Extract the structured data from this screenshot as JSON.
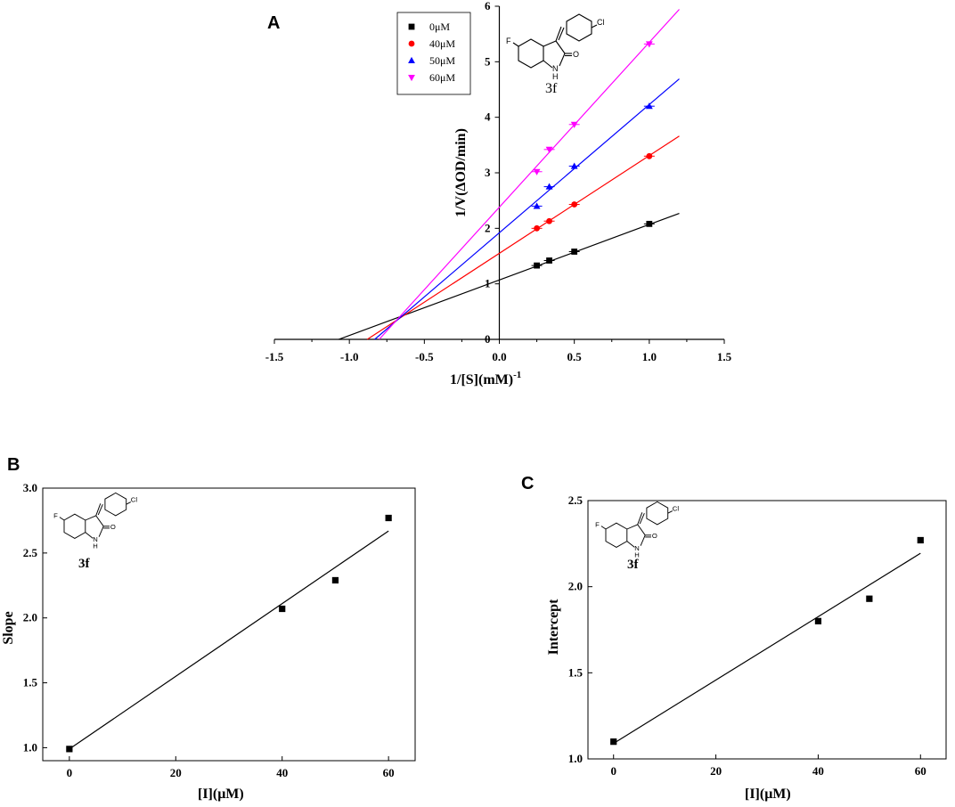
{
  "chart_data": [
    {
      "type": "scatter",
      "panel": "A",
      "xlabel": "1/[S](mM)",
      "xlabel_superscript": "-1",
      "ylabel": "1/V(ΔOD/min)",
      "xlim": [
        -1.5,
        1.5
      ],
      "ylim": [
        0,
        6
      ],
      "xticks": [
        "-1.5",
        "-1.0",
        "-0.5",
        "0.0",
        "0.5",
        "1.0",
        "1.5"
      ],
      "xtick_values": [
        -1.5,
        -1.0,
        -0.5,
        0.0,
        0.5,
        1.0,
        1.5
      ],
      "yticks": [
        "0",
        "1",
        "2",
        "3",
        "4",
        "5",
        "6"
      ],
      "ytick_values": [
        0,
        1,
        2,
        3,
        4,
        5,
        6
      ],
      "compound": "3f",
      "fit_x_range": [
        -1.1,
        1.2
      ],
      "legend_position": "top-left",
      "series": [
        {
          "name": "0μM",
          "marker": "square",
          "color": "#000000",
          "x": [
            0.25,
            0.333,
            0.5,
            1.0
          ],
          "y": [
            1.33,
            1.42,
            1.58,
            2.08
          ],
          "intercept": 1.07,
          "slope": 1.0
        },
        {
          "name": "40μM",
          "marker": "circle",
          "color": "#ff0000",
          "x": [
            0.25,
            0.333,
            0.5,
            1.0
          ],
          "y": [
            2.0,
            2.13,
            2.43,
            3.3
          ],
          "intercept": 1.55,
          "slope": 1.76
        },
        {
          "name": "50μM",
          "marker": "triangle-up",
          "color": "#0000ff",
          "x": [
            0.25,
            0.333,
            0.5,
            1.0
          ],
          "y": [
            2.4,
            2.75,
            3.12,
            4.2
          ],
          "intercept": 1.92,
          "slope": 2.31
        },
        {
          "name": "60μM",
          "marker": "triangle-down",
          "color": "#ff00ff",
          "x": [
            0.25,
            0.333,
            0.5,
            1.0
          ],
          "y": [
            3.02,
            3.42,
            3.87,
            5.32
          ],
          "intercept": 2.38,
          "slope": 2.97
        }
      ]
    },
    {
      "type": "scatter",
      "panel": "B",
      "xlabel": "[I](μM)",
      "ylabel": "Slope",
      "xlim": [
        -5,
        65
      ],
      "ylim": [
        0.9,
        3.0
      ],
      "xticks": [
        "0",
        "20",
        "40",
        "60"
      ],
      "xtick_values": [
        0,
        20,
        40,
        60
      ],
      "yticks": [
        "1.0",
        "1.5",
        "2.0",
        "2.5",
        "3.0"
      ],
      "ytick_values": [
        1.0,
        1.5,
        2.0,
        2.5,
        3.0
      ],
      "compound": "3f",
      "x": [
        0,
        40,
        50,
        60
      ],
      "y": [
        0.99,
        2.07,
        2.29,
        2.77
      ],
      "fit": {
        "intercept": 0.99,
        "slope": 0.028
      }
    },
    {
      "type": "scatter",
      "panel": "C",
      "xlabel": "[I](μM)",
      "ylabel": "Intercept",
      "xlim": [
        -5,
        65
      ],
      "ylim": [
        1.0,
        2.5
      ],
      "xticks": [
        "0",
        "20",
        "40",
        "60"
      ],
      "xtick_values": [
        0,
        20,
        40,
        60
      ],
      "yticks": [
        "1.0",
        "1.5",
        "2.0",
        "2.5"
      ],
      "ytick_values": [
        1.0,
        1.5,
        2.0,
        2.5
      ],
      "compound": "3f",
      "x": [
        0,
        40,
        50,
        60
      ],
      "y": [
        1.1,
        1.8,
        1.93,
        2.27
      ],
      "fit": {
        "intercept": 1.09,
        "slope": 0.0184
      }
    }
  ],
  "atoms": {
    "fluorine": "F",
    "chlorine": "Cl",
    "amine": "N",
    "hydrogen": "H",
    "oxygen": "O"
  }
}
